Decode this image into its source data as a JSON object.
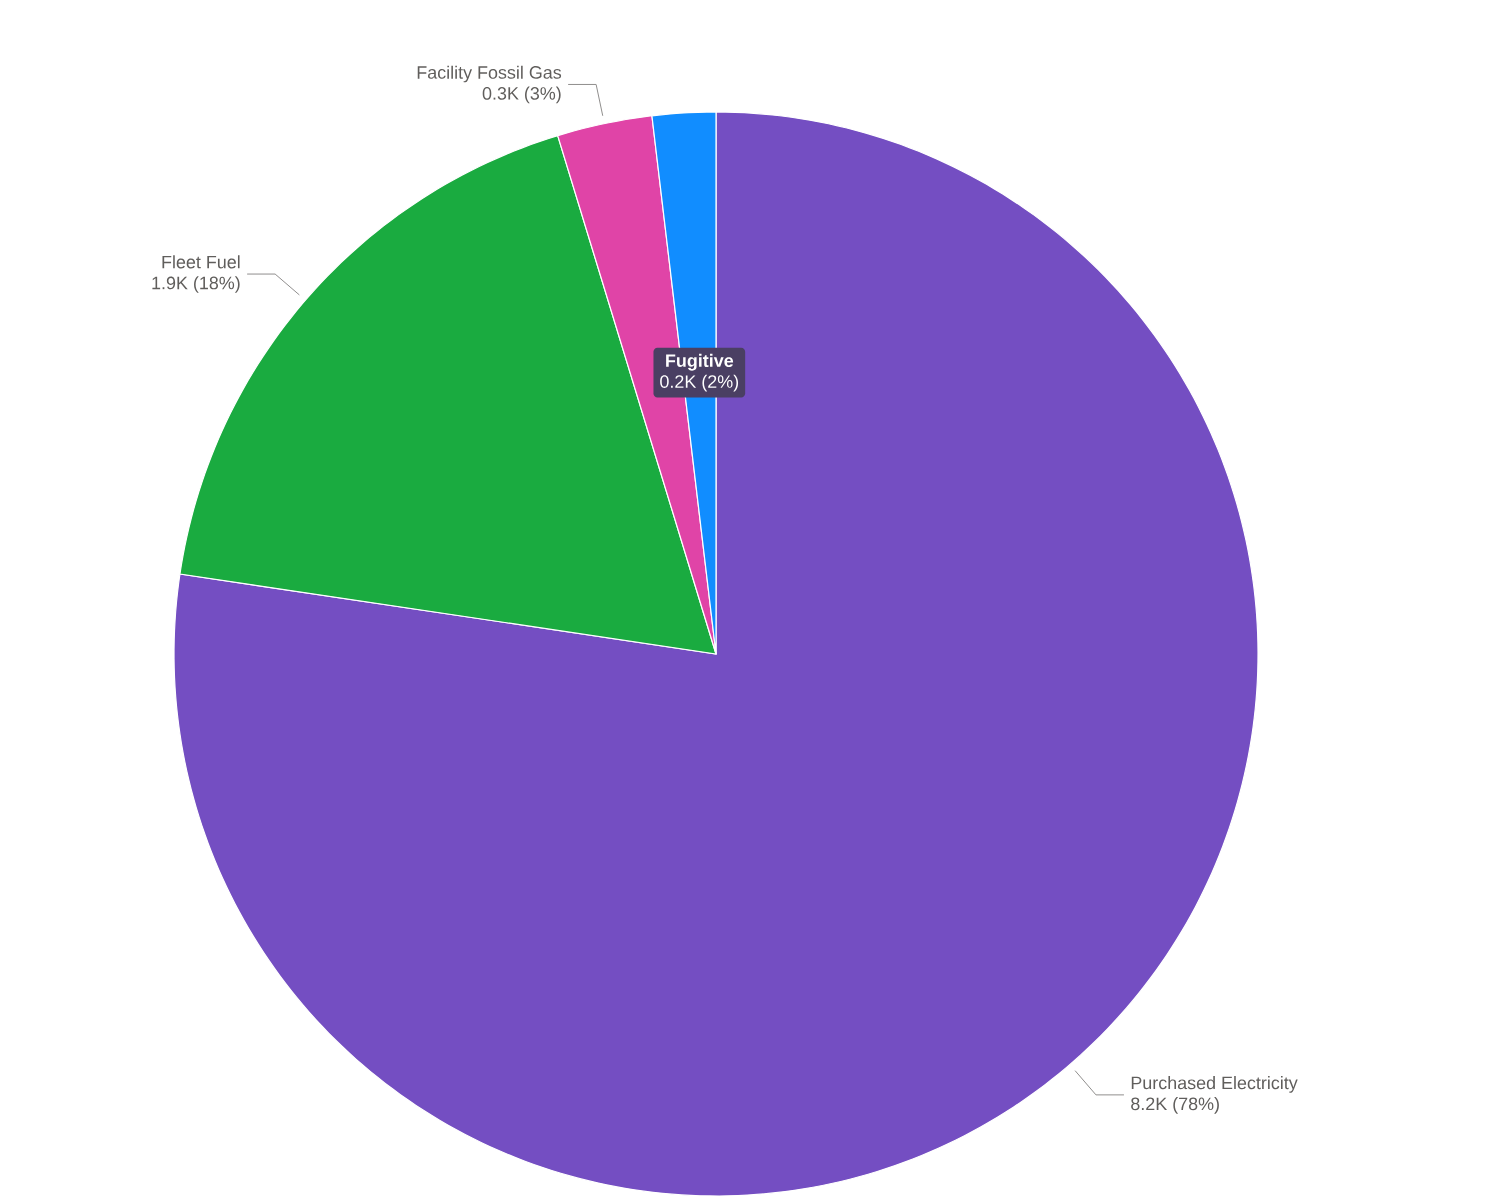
{
  "chart_data": {
    "type": "pie",
    "categories": [
      "Purchased Electricity",
      "Fleet Fuel",
      "Facility Fossil Gas",
      "Fugitive"
    ],
    "values": [
      8200,
      1900,
      300,
      200
    ],
    "value_labels": [
      "8.2K (78%)",
      "1.9K (18%)",
      "0.3K (3%)",
      "0.2K (2%)"
    ],
    "colors": [
      "#744ec2",
      "#1aab40",
      "#e044a7",
      "#118dff"
    ]
  }
}
